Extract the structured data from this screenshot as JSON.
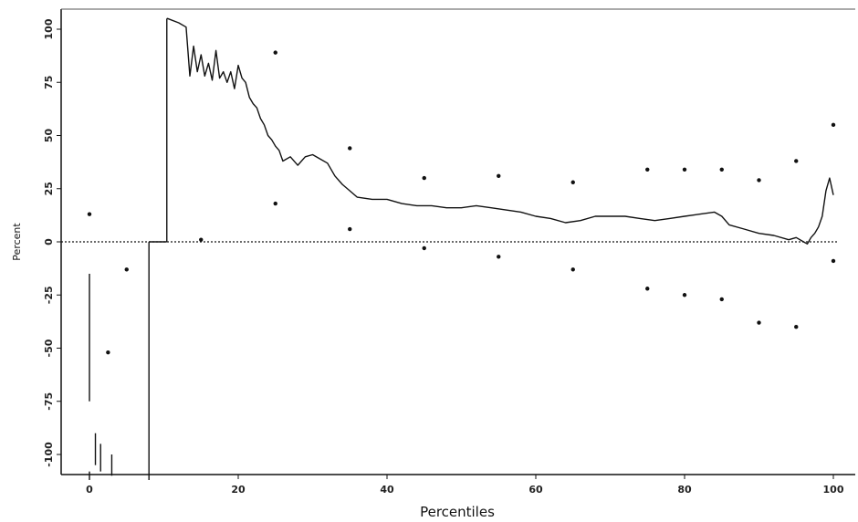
{
  "chart_data": {
    "type": "line",
    "title": "",
    "xlabel": "Percentiles",
    "ylabel": "Percent",
    "xlim": [
      -3,
      103
    ],
    "ylim": [
      -112,
      105
    ],
    "x_ticks": [
      0,
      20,
      40,
      60,
      80,
      100
    ],
    "x_tick_labels": [
      "0",
      "20",
      "40",
      "60",
      "80",
      "100"
    ],
    "y_ticks": [
      100,
      75,
      50,
      25,
      0,
      -25,
      -50,
      -75,
      -100
    ],
    "y_tick_labels": [
      "100",
      "75",
      "50",
      "25",
      "0",
      "-25",
      "-50",
      "-75",
      "-100"
    ],
    "reference_line": {
      "y": 0,
      "style": "dotted"
    },
    "grid": false,
    "series": [
      {
        "style": "line",
        "x": [
          10.4,
          10.5,
          12.0,
          13.0,
          13.5,
          14.0,
          14.5,
          15.0,
          15.5,
          16.0,
          16.5,
          17.0,
          17.5,
          18.0,
          18.5,
          19.0,
          19.5,
          20.0,
          20.5,
          21.0,
          21.5,
          22.0,
          22.5,
          23.0,
          23.5,
          24.0,
          24.5,
          25.0,
          25.5,
          26.0,
          27.0,
          28.0,
          29.0,
          30.0,
          31.0,
          32.0,
          33.0,
          34.0,
          35.0,
          36.0,
          38.0,
          40.0,
          42.0,
          44.0,
          46.0,
          48.0,
          50.0,
          52.0,
          54.0,
          56.0,
          58.0,
          60.0,
          62.0,
          64.0,
          66.0,
          68.0,
          70.0,
          72.0,
          74.0,
          76.0,
          78.0,
          80.0,
          82.0,
          84.0,
          85.0,
          86.0,
          88.0,
          90.0,
          92.0,
          94.0,
          95.0,
          96.0,
          96.5,
          97.0,
          97.5,
          98.0,
          98.5,
          99.0,
          99.5,
          100.0
        ],
        "y": [
          105,
          105,
          103,
          101,
          78,
          92,
          80,
          88,
          78,
          84,
          76,
          90,
          77,
          80,
          75,
          80,
          72,
          83,
          77,
          75,
          68,
          65,
          63,
          58,
          55,
          50,
          48,
          45,
          43,
          38,
          40,
          36,
          40,
          41,
          39,
          37,
          31,
          27,
          24,
          21,
          20,
          20,
          18,
          17,
          17,
          16,
          16,
          17,
          16,
          15,
          14,
          12,
          11,
          9,
          10,
          12,
          12,
          12,
          11,
          10,
          11,
          12,
          13,
          14,
          12,
          8,
          6,
          4,
          3,
          1,
          2,
          0,
          -1,
          2,
          4,
          7,
          12,
          24,
          30,
          22
        ]
      },
      {
        "style": "points",
        "x": [
          0,
          5,
          15,
          25,
          25,
          35,
          35,
          45,
          45,
          55,
          55,
          65,
          65,
          75,
          75,
          80,
          80,
          85,
          85,
          90,
          90,
          95,
          95,
          100,
          100
        ],
        "y": [
          13,
          -13,
          1,
          89,
          18,
          44,
          6,
          30,
          -3,
          31,
          -7,
          28,
          -13,
          34,
          -22,
          34,
          -25,
          34,
          -27,
          29,
          -38,
          38,
          -40,
          55,
          -9
        ]
      },
      {
        "style": "points",
        "x": [
          2.5
        ],
        "y": [
          -52
        ]
      }
    ],
    "vertical_segments": [
      {
        "x": 0,
        "y_from": -15,
        "y_to": -75
      },
      {
        "x": 0,
        "y_from": -108,
        "y_to": -112
      },
      {
        "x": 0.8,
        "y_from": -90,
        "y_to": -105
      },
      {
        "x": 1.5,
        "y_from": -95,
        "y_to": -108
      },
      {
        "x": 3.0,
        "y_from": -100,
        "y_to": -110
      },
      {
        "x": 8.0,
        "y_from": 0,
        "y_to": -112
      },
      {
        "x": 10.4,
        "y_from": 105,
        "y_to": 0
      }
    ],
    "horizontal_segments": [
      {
        "x_from": 8.0,
        "x_to": 10.4,
        "y": 0
      }
    ]
  }
}
